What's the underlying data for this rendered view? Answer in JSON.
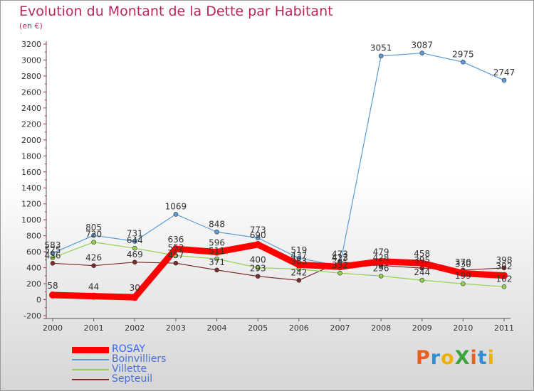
{
  "title": "Evolution du Montant de la Dette par Habitant",
  "subtitle": "(en €)",
  "logo_text": "ProXiti",
  "colors": {
    "title": "#b8285e",
    "axis_text": "#333333",
    "gridline": "#cc2255"
  },
  "chart_data": {
    "type": "line",
    "title": "Evolution du Montant de la Dette par Habitant",
    "subtitle": "(en €)",
    "xlabel": "",
    "ylabel": "",
    "ylim": [
      -200,
      3200
    ],
    "grid": false,
    "legend_position": "bottom-left",
    "categories": [
      "2000",
      "2001",
      "2002",
      "2003",
      "2004",
      "2005",
      "2006",
      "2007",
      "2008",
      "2009",
      "2010",
      "2011"
    ],
    "yticks": [
      -200,
      0,
      200,
      400,
      600,
      800,
      1000,
      1200,
      1400,
      1600,
      1800,
      2000,
      2200,
      2400,
      2600,
      2800,
      3000,
      3200
    ],
    "series": [
      {
        "name": "ROSAY",
        "color": "#ff0000",
        "values": [
          58,
          44,
          30,
          636,
          596,
          690,
          437,
          412,
          479,
          458,
          330,
          302
        ]
      },
      {
        "name": "Boinvilliers",
        "color": "#5b9bd5",
        "values": [
          583,
          805,
          731,
          1069,
          848,
          773,
          519,
          423,
          3051,
          3087,
          2975,
          2747
        ]
      },
      {
        "name": "Villette",
        "color": "#92d050",
        "values": [
          525,
          720,
          644,
          552,
          511,
          400,
          383,
          332,
          296,
          244,
          199,
          162
        ]
      },
      {
        "name": "Septeuil",
        "color": "#7b2c2c",
        "values": [
          456,
          426,
          469,
          457,
          371,
          293,
          242,
          473,
          428,
          395,
          370,
          398
        ]
      }
    ]
  }
}
